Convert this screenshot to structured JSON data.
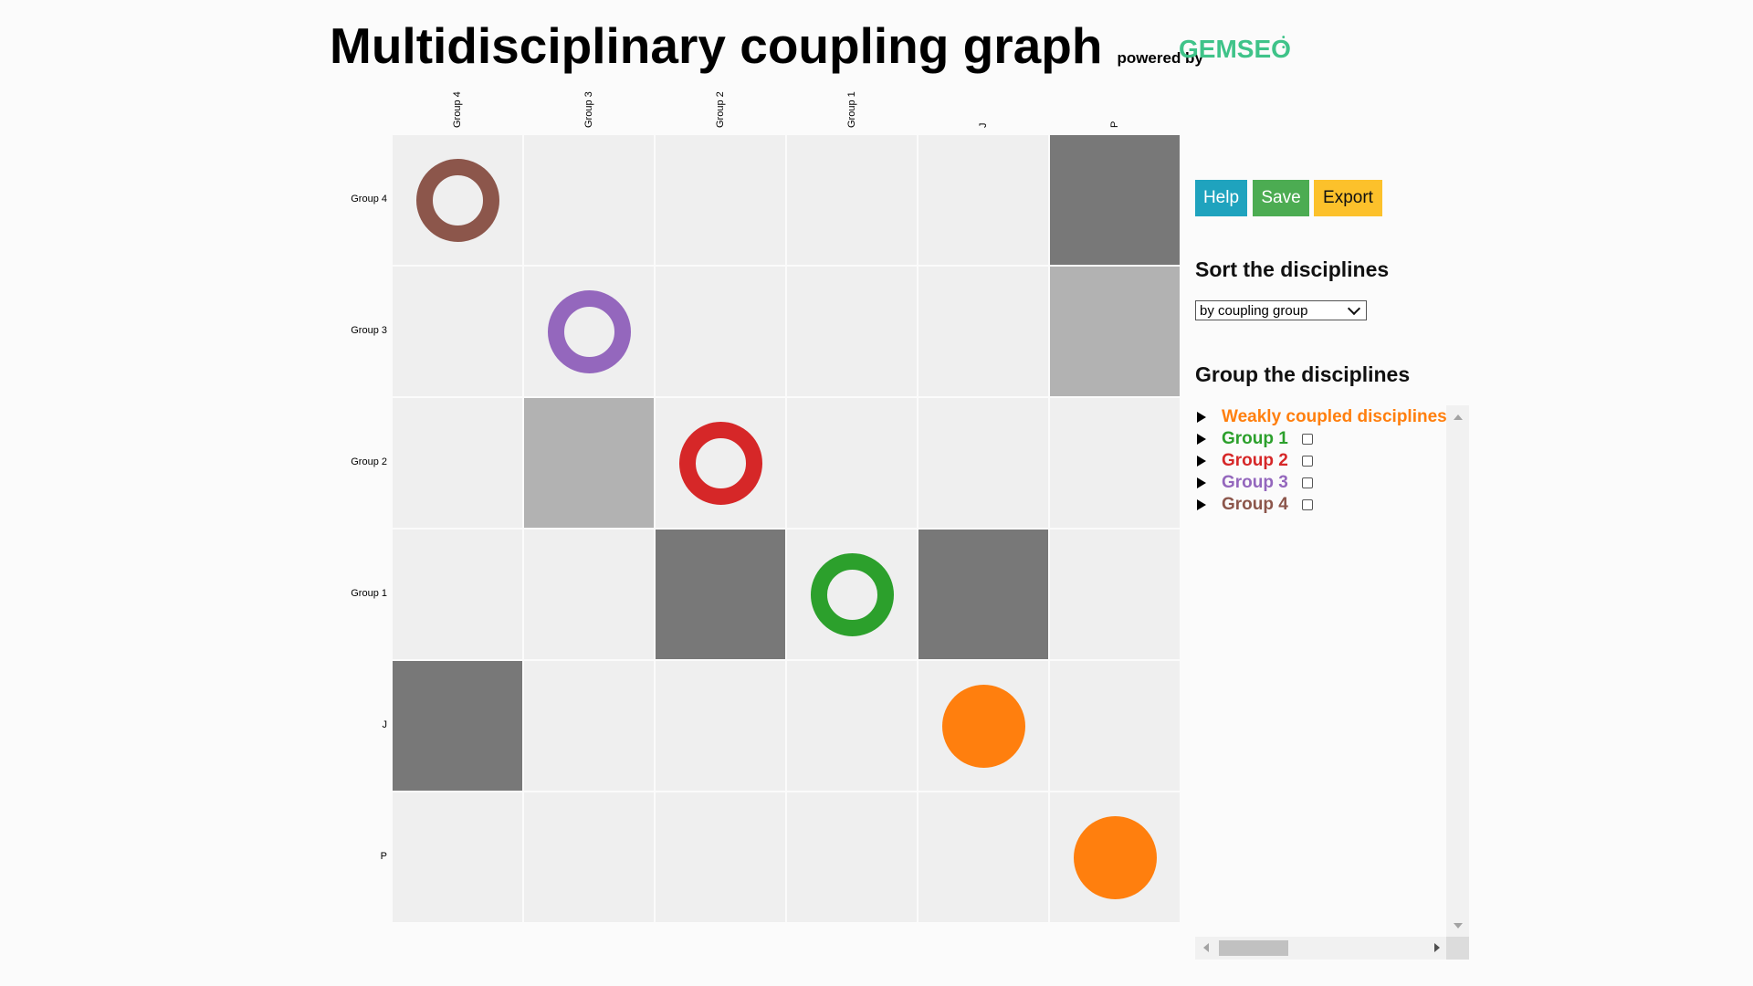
{
  "header": {
    "title": "Multidisciplinary coupling graph",
    "powered_by": "powered by",
    "logo_text": "GEMSEO",
    "logo_dots": "• •"
  },
  "matrix": {
    "columns": [
      "Group 4",
      "Group 3",
      "Group 2",
      "Group 1",
      "J",
      "P"
    ],
    "rows": [
      "Group 4",
      "Group 3",
      "Group 2",
      "Group 1",
      "J",
      "P"
    ],
    "cells": [
      {
        "row": 0,
        "col": 5,
        "shade": "dark"
      },
      {
        "row": 1,
        "col": 5,
        "shade": "light"
      },
      {
        "row": 2,
        "col": 1,
        "shade": "light"
      },
      {
        "row": 3,
        "col": 2,
        "shade": "dark"
      },
      {
        "row": 3,
        "col": 4,
        "shade": "dark"
      },
      {
        "row": 4,
        "col": 0,
        "shade": "dark"
      }
    ],
    "diagonal": [
      {
        "index": 0,
        "type": "ring",
        "color": "#8c564b"
      },
      {
        "index": 1,
        "type": "ring",
        "color": "#9467bd"
      },
      {
        "index": 2,
        "type": "ring",
        "color": "#d62728"
      },
      {
        "index": 3,
        "type": "ring",
        "color": "#2ca02c"
      },
      {
        "index": 4,
        "type": "dot",
        "color": "#ff7f0e"
      },
      {
        "index": 5,
        "type": "dot",
        "color": "#ff7f0e"
      }
    ]
  },
  "toolbar": {
    "help_label": "Help",
    "save_label": "Save",
    "export_label": "Export"
  },
  "sort": {
    "heading": "Sort the disciplines",
    "selected": "by coupling group"
  },
  "group": {
    "heading": "Group the disciplines",
    "items": [
      {
        "label": "Weakly coupled disciplines",
        "color": "#ff7f0e",
        "checkbox": false
      },
      {
        "label": "Group 1",
        "color": "#2ca02c",
        "checkbox": true
      },
      {
        "label": "Group 2",
        "color": "#d62728",
        "checkbox": true
      },
      {
        "label": "Group 3",
        "color": "#9467bd",
        "checkbox": true
      },
      {
        "label": "Group 4",
        "color": "#8c564b",
        "checkbox": true
      }
    ]
  }
}
